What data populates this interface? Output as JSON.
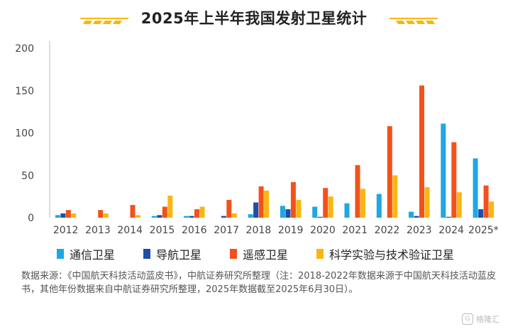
{
  "chart_data": {
    "type": "bar",
    "title": "2025年上半年我国发射卫星统计",
    "categories": [
      "2012",
      "2013",
      "2014",
      "2015",
      "2016",
      "2017",
      "2018",
      "2019",
      "2020",
      "2021",
      "2022",
      "2023",
      "2024",
      "2025*"
    ],
    "series": [
      {
        "name": "通信卫星",
        "color": "#1ea7e4",
        "values": [
          3,
          0,
          0,
          2,
          2,
          0,
          4,
          14,
          13,
          17,
          28,
          7,
          111,
          70
        ]
      },
      {
        "name": "导航卫星",
        "color": "#1f4ea8",
        "values": [
          5,
          0,
          0,
          3,
          2,
          2,
          18,
          10,
          1,
          0,
          0,
          2,
          1,
          10
        ]
      },
      {
        "name": "遥感卫星",
        "color": "#f2521a",
        "values": [
          9,
          9,
          15,
          13,
          10,
          21,
          37,
          42,
          35,
          62,
          108,
          156,
          89,
          38
        ]
      },
      {
        "name": "科学实验与技术验证卫星",
        "color": "#f9b612",
        "values": [
          5,
          5,
          3,
          26,
          13,
          5,
          32,
          21,
          25,
          34,
          50,
          36,
          30,
          19
        ]
      }
    ],
    "y_ticks": [
      "200",
      "150",
      "100",
      "50",
      "0"
    ],
    "ylim": [
      0,
      200
    ],
    "grid": false,
    "legend_position": "bottom"
  },
  "note": "数据来源：《中国航天科技活动蓝皮书》，中航证券研究所整理（注：2018-2022年数据来源于中国航天科技活动蓝皮书，其他年份数据来自中航证券研究所整理，2025年数据截至2025年6月30日）。",
  "watermark": "格隆汇"
}
